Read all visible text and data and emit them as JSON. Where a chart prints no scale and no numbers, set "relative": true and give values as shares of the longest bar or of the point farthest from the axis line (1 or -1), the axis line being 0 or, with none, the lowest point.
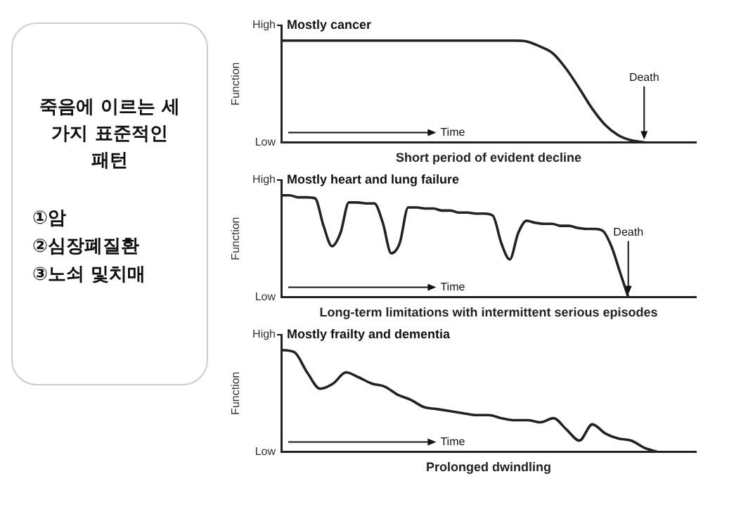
{
  "chart_data": [
    {
      "type": "other",
      "title": "죽음에 이르는 세 가지 표준적인 패턴",
      "annotations": [
        "①암",
        "②심장폐질환",
        "③노쇠 및치매"
      ]
    },
    {
      "type": "line",
      "title": "Mostly cancer",
      "ylabel": "Function",
      "xlabel": "Short period of evident decline",
      "relative": true,
      "grid": false,
      "legend": false,
      "marker": "none",
      "annotations": [
        "High",
        "Low",
        "Time",
        "Death"
      ],
      "categories": [
        null,
        null,
        null,
        null,
        null,
        null,
        null,
        null,
        null,
        null,
        null,
        null,
        null,
        null,
        null,
        null,
        null,
        null,
        null,
        null,
        null,
        null,
        null,
        null,
        null,
        null,
        null,
        null,
        null,
        null,
        null,
        null,
        null
      ],
      "series": [
        {
          "color": "#222222",
          "values": [
            1,
            1,
            1,
            1,
            1,
            1,
            1,
            1,
            1,
            1,
            1,
            1,
            1,
            1,
            1,
            1,
            1,
            1,
            1,
            0.99,
            0.94,
            0.87,
            0.72,
            0.53,
            0.33,
            0.17,
            0.07,
            0.02,
            0,
            null,
            null,
            null,
            null
          ]
        }
      ]
    },
    {
      "type": "line",
      "title": "Mostly heart and lung failure",
      "ylabel": "Function",
      "xlabel": "Long-term limitations with intermittent serious episodes",
      "relative": true,
      "grid": false,
      "legend": false,
      "marker": "none",
      "annotations": [
        "High",
        "Low",
        "Time",
        "Death"
      ],
      "categories": [
        null,
        null,
        null,
        null,
        null,
        null,
        null,
        null,
        null,
        null,
        null,
        null,
        null,
        null,
        null,
        null,
        null,
        null,
        null,
        null,
        null,
        null,
        null,
        null,
        null,
        null,
        null,
        null,
        null,
        null,
        null,
        null,
        null,
        null,
        null,
        null,
        null,
        null,
        null,
        null,
        null,
        null,
        null,
        null,
        null,
        null,
        null,
        null,
        null,
        null
      ],
      "series": [
        {
          "color": "#222222",
          "values": [
            1,
            1,
            0.98,
            0.98,
            0.97,
            0.7,
            0.5,
            0.63,
            0.93,
            0.93,
            0.92,
            0.92,
            0.73,
            0.43,
            0.53,
            0.88,
            0.88,
            0.87,
            0.87,
            0.85,
            0.85,
            0.83,
            0.83,
            0.82,
            0.82,
            0.8,
            0.53,
            0.37,
            0.63,
            0.75,
            0.73,
            0.72,
            0.72,
            0.7,
            0.7,
            0.68,
            0.67,
            0.67,
            0.65,
            0.5,
            0.25,
            0,
            null,
            null,
            null,
            null,
            null,
            null,
            null,
            null
          ]
        }
      ]
    },
    {
      "type": "line",
      "title": "Mostly frailty and dementia",
      "ylabel": "Function",
      "xlabel": "Prolonged dwindling",
      "relative": true,
      "grid": false,
      "legend": false,
      "marker": "none",
      "annotations": [
        "High",
        "Low",
        "Time"
      ],
      "categories": [
        null,
        null,
        null,
        null,
        null,
        null,
        null,
        null,
        null,
        null,
        null,
        null,
        null,
        null,
        null,
        null,
        null,
        null,
        null,
        null,
        null,
        null,
        null,
        null,
        null,
        null,
        null,
        null,
        null,
        null,
        null,
        null,
        null
      ],
      "series": [
        {
          "color": "#222222",
          "values": [
            1,
            0.98,
            0.78,
            0.62,
            0.67,
            0.78,
            0.73,
            0.67,
            0.64,
            0.56,
            0.51,
            0.44,
            0.42,
            0.4,
            0.38,
            0.36,
            0.36,
            0.33,
            0.31,
            0.31,
            0.29,
            0.33,
            0.22,
            0.11,
            0.27,
            0.18,
            0.13,
            0.11,
            0.04,
            0,
            null,
            null,
            null
          ]
        }
      ]
    }
  ]
}
